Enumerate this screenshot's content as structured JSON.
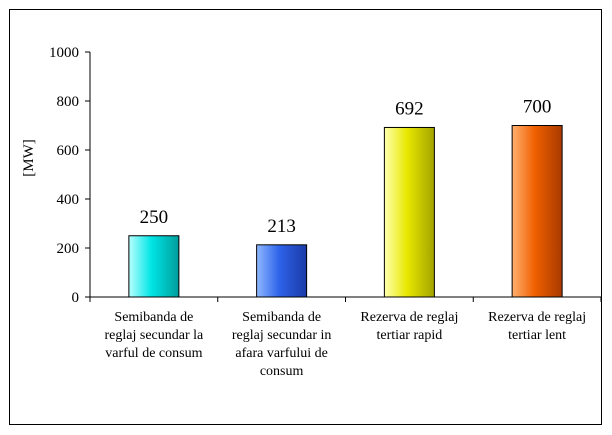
{
  "chart_data": {
    "type": "bar",
    "categories": [
      [
        "Semibanda de",
        "reglaj secundar la",
        "varful de consum"
      ],
      [
        "Semibanda de",
        "reglaj secundar in",
        "afara varfului de",
        "consum"
      ],
      [
        "Rezerva de reglaj",
        "tertiar rapid"
      ],
      [
        "Rezerva de reglaj",
        "tertiar lent"
      ]
    ],
    "values": [
      250,
      213,
      692,
      700
    ],
    "data_labels": [
      "250",
      "213",
      "692",
      "700"
    ],
    "ylabel": "[MW]",
    "ylim": [
      0,
      1000
    ],
    "yticks": [
      0,
      200,
      400,
      600,
      800,
      1000
    ],
    "grid": false,
    "legend": "none",
    "bar_colors": [
      {
        "light": "#b8ffff",
        "main": "#00e5e5",
        "dark": "#009c9c"
      },
      {
        "light": "#8fb8ff",
        "main": "#2e63ea",
        "dark": "#1a3aa6"
      },
      {
        "light": "#ffffb0",
        "main": "#e8e800",
        "dark": "#a3a300"
      },
      {
        "light": "#ffb070",
        "main": "#f06000",
        "dark": "#a83a00"
      }
    ]
  }
}
